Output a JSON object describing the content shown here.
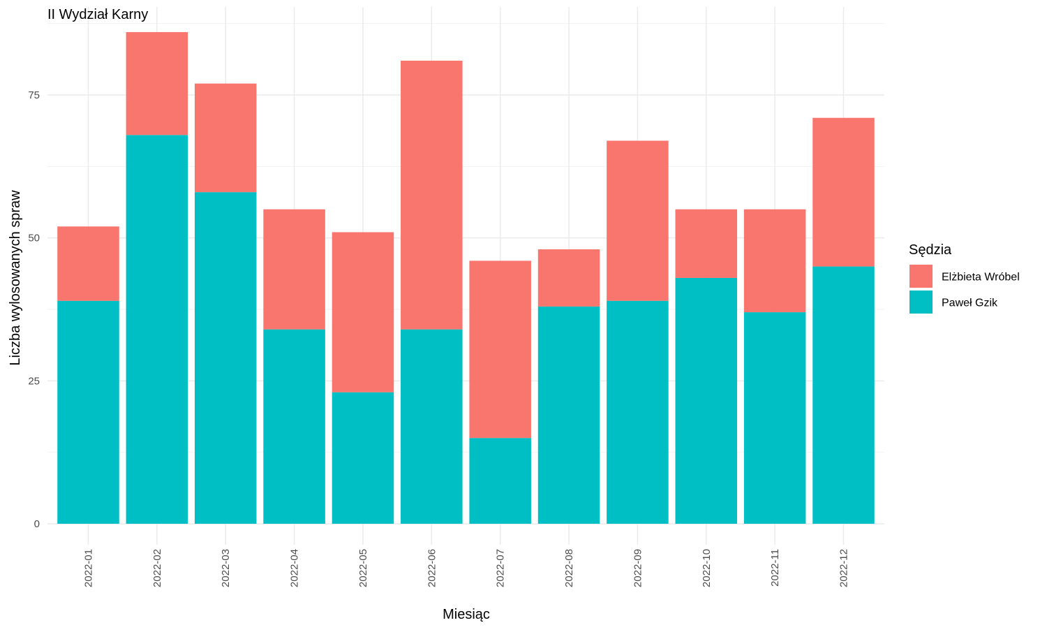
{
  "chart_data": {
    "type": "bar",
    "stacked": true,
    "title": "II Wydział Karny",
    "xlabel": "Miesiąc",
    "ylabel": "Liczba wylosowanych spraw",
    "categories": [
      "2022-01",
      "2022-02",
      "2022-03",
      "2022-04",
      "2022-05",
      "2022-06",
      "2022-07",
      "2022-08",
      "2022-09",
      "2022-10",
      "2022-11",
      "2022-12"
    ],
    "series": [
      {
        "name": "Paweł Gzik",
        "color": "#00BFC4",
        "values": [
          39,
          68,
          58,
          34,
          23,
          34,
          15,
          38,
          39,
          43,
          37,
          45
        ]
      },
      {
        "name": "Elżbieta Wróbel",
        "color": "#F8766D",
        "values": [
          13,
          18,
          19,
          21,
          28,
          47,
          31,
          10,
          28,
          12,
          18,
          26
        ]
      }
    ],
    "ylim": [
      0,
      90
    ],
    "yticks": [
      0,
      25,
      50,
      75
    ],
    "grid": true,
    "legend": {
      "title": "Sędzia",
      "position": "right",
      "entries": [
        {
          "label": "Elżbieta Wróbel",
          "color": "#F8766D"
        },
        {
          "label": "Paweł Gzik",
          "color": "#00BFC4"
        }
      ]
    }
  }
}
